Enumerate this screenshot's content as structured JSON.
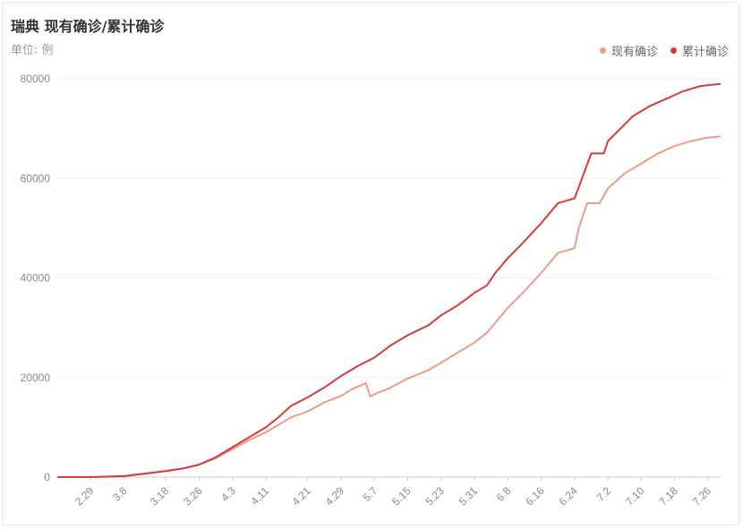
{
  "title": "瑞典 现有确诊/累计确诊",
  "unit_label": "单位: 例",
  "colors": {
    "current": "#ee9a86",
    "cumulative": "#d63b3b",
    "grid": "#f2f2f2",
    "axis": "#cccccc"
  },
  "chart_data": {
    "type": "line",
    "title": "瑞典 现有确诊/累计确诊",
    "ylabel": "单位: 例",
    "xlabel": "",
    "ylim": [
      0,
      80000
    ],
    "yticks": [
      0,
      20000,
      40000,
      60000,
      80000
    ],
    "x_start": "2.21",
    "x_end": "7.29",
    "x_tick_labels": [
      "2.29",
      "3.8",
      "3.18",
      "3.26",
      "4.3",
      "4.11",
      "4.21",
      "4.29",
      "5.7",
      "5.15",
      "5.23",
      "5.31",
      "6.8",
      "6.16",
      "6.24",
      "7.2",
      "7.10",
      "7.18",
      "7.26"
    ],
    "legend_position": "top-right",
    "grid": true,
    "series": [
      {
        "name": "现有确诊",
        "points": [
          [
            "2.21",
            0
          ],
          [
            "3.1",
            10
          ],
          [
            "3.8",
            200
          ],
          [
            "3.13",
            700
          ],
          [
            "3.18",
            1200
          ],
          [
            "3.22",
            1700
          ],
          [
            "3.26",
            2500
          ],
          [
            "3.30",
            3800
          ],
          [
            "4.3",
            5600
          ],
          [
            "4.7",
            7400
          ],
          [
            "4.11",
            9000
          ],
          [
            "4.14",
            10500
          ],
          [
            "4.17",
            12000
          ],
          [
            "4.21",
            13200
          ],
          [
            "4.25",
            15000
          ],
          [
            "4.29",
            16300
          ],
          [
            "5.2",
            17800
          ],
          [
            "5.5",
            18900
          ],
          [
            "5.6",
            16200
          ],
          [
            "5.8",
            17000
          ],
          [
            "5.10",
            17600
          ],
          [
            "5.15",
            19800
          ],
          [
            "5.20",
            21500
          ],
          [
            "5.23",
            23000
          ],
          [
            "5.27",
            25000
          ],
          [
            "5.31",
            27000
          ],
          [
            "6.3",
            29000
          ],
          [
            "6.5",
            31000
          ],
          [
            "6.8",
            34000
          ],
          [
            "6.11",
            36500
          ],
          [
            "6.16",
            41000
          ],
          [
            "6.20",
            45000
          ],
          [
            "6.24",
            46000
          ],
          [
            "6.25",
            50000
          ],
          [
            "6.27",
            55000
          ],
          [
            "6.30",
            55000
          ],
          [
            "7.2",
            58000
          ],
          [
            "7.6",
            61000
          ],
          [
            "7.10",
            63000
          ],
          [
            "7.14",
            65000
          ],
          [
            "7.18",
            66500
          ],
          [
            "7.22",
            67500
          ],
          [
            "7.26",
            68200
          ],
          [
            "7.29",
            68400
          ]
        ]
      },
      {
        "name": "累计确诊",
        "points": [
          [
            "2.21",
            0
          ],
          [
            "3.1",
            10
          ],
          [
            "3.8",
            200
          ],
          [
            "3.13",
            700
          ],
          [
            "3.18",
            1200
          ],
          [
            "3.22",
            1700
          ],
          [
            "3.26",
            2500
          ],
          [
            "3.30",
            4000
          ],
          [
            "4.3",
            6000
          ],
          [
            "4.7",
            8000
          ],
          [
            "4.11",
            10000
          ],
          [
            "4.14",
            12000
          ],
          [
            "4.17",
            14300
          ],
          [
            "4.21",
            16000
          ],
          [
            "4.25",
            18000
          ],
          [
            "4.29",
            20300
          ],
          [
            "5.3",
            22300
          ],
          [
            "5.7",
            24000
          ],
          [
            "5.11",
            26500
          ],
          [
            "5.15",
            28500
          ],
          [
            "5.20",
            30500
          ],
          [
            "5.23",
            32500
          ],
          [
            "5.27",
            34500
          ],
          [
            "5.31",
            37000
          ],
          [
            "6.3",
            38500
          ],
          [
            "6.5",
            41000
          ],
          [
            "6.8",
            44000
          ],
          [
            "6.11",
            46500
          ],
          [
            "6.16",
            51000
          ],
          [
            "6.20",
            55000
          ],
          [
            "6.24",
            56000
          ],
          [
            "6.26",
            60500
          ],
          [
            "6.28",
            65000
          ],
          [
            "7.1",
            65000
          ],
          [
            "7.2",
            67500
          ],
          [
            "7.5",
            70000
          ],
          [
            "7.8",
            72500
          ],
          [
            "7.12",
            74500
          ],
          [
            "7.16",
            76000
          ],
          [
            "7.20",
            77500
          ],
          [
            "7.24",
            78500
          ],
          [
            "7.29",
            79000
          ]
        ]
      }
    ]
  }
}
